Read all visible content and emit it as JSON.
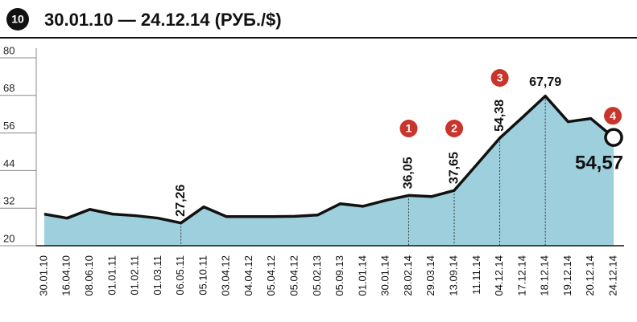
{
  "chart_data": {
    "type": "area",
    "badge": "10",
    "title": "30.01.10 — 24.12.14 (РУБ./$)",
    "categories": [
      "30.01.10",
      "16.04.10",
      "08.06.10",
      "01.01.11",
      "01.02.11",
      "01.03.11",
      "06.05.11",
      "05.10.11",
      "03.04.12",
      "04.04.12",
      "05.04.12",
      "05.04.12",
      "05.02.13",
      "05.09.13",
      "01.01.14",
      "30.01.14",
      "28.02.14",
      "29.03.14",
      "13.09.14",
      "11.11.14",
      "04.12.14",
      "17.12.14",
      "18.12.14",
      "19.12.14",
      "20.12.14",
      "24.12.14"
    ],
    "values": [
      30.1,
      28.8,
      31.6,
      30.1,
      29.6,
      28.8,
      27.26,
      32.4,
      29.3,
      29.3,
      29.3,
      29.4,
      29.8,
      33.4,
      32.6,
      34.5,
      36.05,
      35.7,
      37.65,
      46,
      54.38,
      61,
      67.79,
      59.6,
      60.6,
      54.57
    ],
    "value_labels": [
      null,
      null,
      null,
      null,
      null,
      null,
      "27,26",
      null,
      null,
      null,
      null,
      null,
      null,
      null,
      null,
      null,
      "36,05",
      null,
      "37,65",
      null,
      "54,38",
      null,
      "67,79",
      null,
      null,
      "54,57"
    ],
    "callouts": [
      null,
      null,
      null,
      null,
      null,
      null,
      null,
      null,
      null,
      null,
      null,
      null,
      null,
      null,
      null,
      null,
      "1",
      null,
      "2",
      null,
      "3",
      null,
      null,
      null,
      null,
      "4"
    ],
    "color": "#9ecfdc",
    "line_color": "#111111",
    "ylim": [
      20,
      80
    ],
    "yticks": [
      20,
      32,
      44,
      56,
      68,
      80
    ]
  }
}
